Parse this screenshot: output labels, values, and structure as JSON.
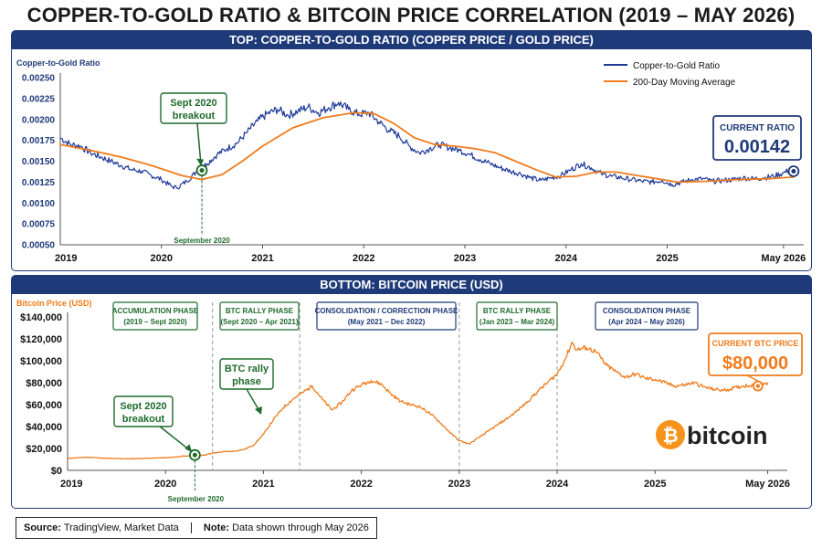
{
  "title": "COPPER-TO-GOLD RATIO & BITCOIN PRICE CORRELATION (2019 – MAY 2026)",
  "footer": {
    "source_label": "Source:",
    "source_value": "TradingView, Market Data",
    "note_label": "Note:",
    "note_value": "Data shown through May 2026"
  },
  "colors": {
    "navy": "#1f3a78",
    "ratio_line": "#1f3a9a",
    "ma_line": "#f07b1c",
    "btc_line": "#f07b1c",
    "green": "#1e6b2c",
    "btc_logo": "#f7931a"
  },
  "chart_data": [
    {
      "type": "line",
      "panel_title": "TOP: COPPER-TO-GOLD RATIO (COPPER PRICE / GOLD PRICE)",
      "ylabel": "Copper-to-Gold Ratio",
      "ylim": [
        0.0005,
        0.0025
      ],
      "yticks": [
        "0.00250",
        "0.00225",
        "0.00200",
        "0.00175",
        "0.00150",
        "0.00125",
        "0.00100",
        "0.00075",
        "0.00050"
      ],
      "xlim": [
        2019.0,
        2026.35
      ],
      "xticks": [
        {
          "x": 2019,
          "label": "2019"
        },
        {
          "x": 2020,
          "label": "2020"
        },
        {
          "x": 2021,
          "label": "2021"
        },
        {
          "x": 2022,
          "label": "2022"
        },
        {
          "x": 2023,
          "label": "2023"
        },
        {
          "x": 2024,
          "label": "2024"
        },
        {
          "x": 2025,
          "label": "2025"
        },
        {
          "x": 2026.15,
          "label": "May 2026"
        }
      ],
      "legend": {
        "position": "top-right",
        "entries": [
          "Copper-to-Gold Ratio",
          "200-Day Moving Average"
        ]
      },
      "series": [
        {
          "name": "Copper-to-Gold Ratio",
          "x": [
            2019.0,
            2019.1,
            2019.2,
            2019.3,
            2019.4,
            2019.5,
            2019.6,
            2019.7,
            2019.8,
            2019.9,
            2020.0,
            2020.1,
            2020.15,
            2020.25,
            2020.35,
            2020.45,
            2020.55,
            2020.65,
            2020.75,
            2020.85,
            2020.95,
            2021.05,
            2021.15,
            2021.25,
            2021.35,
            2021.45,
            2021.55,
            2021.65,
            2021.75,
            2021.85,
            2021.95,
            2022.05,
            2022.15,
            2022.25,
            2022.35,
            2022.45,
            2022.55,
            2022.65,
            2022.75,
            2022.85,
            2022.95,
            2023.05,
            2023.15,
            2023.25,
            2023.35,
            2023.45,
            2023.55,
            2023.65,
            2023.75,
            2023.85,
            2023.95,
            2024.05,
            2024.15,
            2024.25,
            2024.35,
            2024.45,
            2024.55,
            2024.65,
            2024.75,
            2024.85,
            2024.95,
            2025.05,
            2025.15,
            2025.25,
            2025.35,
            2025.45,
            2025.55,
            2025.65,
            2025.75,
            2025.85,
            2025.95,
            2026.05,
            2026.15,
            2026.25
          ],
          "values": [
            0.00178,
            0.0017,
            0.00168,
            0.0016,
            0.00155,
            0.0015,
            0.00145,
            0.0014,
            0.00138,
            0.00133,
            0.00128,
            0.0012,
            0.00118,
            0.00126,
            0.00138,
            0.00147,
            0.00158,
            0.00165,
            0.00172,
            0.00185,
            0.00198,
            0.00207,
            0.00212,
            0.00205,
            0.0021,
            0.00215,
            0.00208,
            0.00214,
            0.0022,
            0.00212,
            0.00206,
            0.00208,
            0.00197,
            0.00187,
            0.0018,
            0.00168,
            0.0016,
            0.00165,
            0.0017,
            0.00166,
            0.00163,
            0.00158,
            0.00152,
            0.00147,
            0.00142,
            0.00138,
            0.00135,
            0.0013,
            0.00127,
            0.0013,
            0.00133,
            0.0014,
            0.00147,
            0.00142,
            0.00135,
            0.00132,
            0.0013,
            0.00128,
            0.00126,
            0.00125,
            0.00127,
            0.00122,
            0.00125,
            0.00128,
            0.00129,
            0.00126,
            0.00127,
            0.00128,
            0.0013,
            0.00129,
            0.0013,
            0.00132,
            0.00136,
            0.00142
          ]
        },
        {
          "name": "200-Day Moving Average",
          "x": [
            2019.0,
            2019.3,
            2019.6,
            2019.9,
            2020.2,
            2020.4,
            2020.6,
            2020.8,
            2021.0,
            2021.3,
            2021.6,
            2021.9,
            2022.1,
            2022.3,
            2022.5,
            2022.7,
            2022.9,
            2023.1,
            2023.3,
            2023.5,
            2023.7,
            2023.9,
            2024.1,
            2024.3,
            2024.5,
            2024.7,
            2024.9,
            2025.1,
            2025.4,
            2025.7,
            2026.0,
            2026.25
          ],
          "values": [
            0.0017,
            0.00163,
            0.00155,
            0.00145,
            0.00133,
            0.00128,
            0.00134,
            0.0015,
            0.00168,
            0.0019,
            0.00202,
            0.00208,
            0.00207,
            0.00195,
            0.00178,
            0.0017,
            0.00168,
            0.00165,
            0.0016,
            0.0015,
            0.0014,
            0.00131,
            0.00132,
            0.00137,
            0.00137,
            0.00133,
            0.00129,
            0.00125,
            0.00126,
            0.00128,
            0.00129,
            0.00131
          ]
        }
      ],
      "annotations": {
        "breakout_label": [
          "Sept 2020",
          "breakout"
        ],
        "breakout_point": {
          "x": 2020.4,
          "y": 0.00139
        },
        "breakout_date": "September 2020",
        "current_label": "CURRENT RATIO",
        "current_value": "0.00142",
        "current_point": {
          "x": 2026.25,
          "y": 0.00138
        }
      }
    },
    {
      "type": "line",
      "panel_title": "BOTTOM: BITCOIN PRICE (USD)",
      "ylabel": "Bitcoin Price (USD)",
      "ylim": [
        0,
        140000
      ],
      "yticks": [
        "$140,000",
        "$120,000",
        "$100,000",
        "$80,000",
        "$60,000",
        "$40,000",
        "$20,000",
        "$0"
      ],
      "xlim": [
        2019.0,
        2026.35
      ],
      "xticks": [
        {
          "x": 2019,
          "label": "2019"
        },
        {
          "x": 2020,
          "label": "2020"
        },
        {
          "x": 2021,
          "label": "2021"
        },
        {
          "x": 2022,
          "label": "2022"
        },
        {
          "x": 2023,
          "label": "2023"
        },
        {
          "x": 2024,
          "label": "2024"
        },
        {
          "x": 2025,
          "label": "2025"
        },
        {
          "x": 2026.15,
          "label": "May 2026"
        }
      ],
      "series": [
        {
          "name": "Bitcoin Price (USD)",
          "x": [
            2019.0,
            2019.2,
            2019.4,
            2019.6,
            2019.8,
            2020.0,
            2020.2,
            2020.4,
            2020.5,
            2020.6,
            2020.7,
            2020.8,
            2020.9,
            2021.0,
            2021.1,
            2021.2,
            2021.3,
            2021.4,
            2021.5,
            2021.6,
            2021.7,
            2021.8,
            2021.9,
            2022.0,
            2022.1,
            2022.2,
            2022.3,
            2022.4,
            2022.5,
            2022.6,
            2022.7,
            2022.8,
            2022.9,
            2023.0,
            2023.1,
            2023.2,
            2023.3,
            2023.4,
            2023.5,
            2023.6,
            2023.7,
            2023.8,
            2023.9,
            2024.0,
            2024.1,
            2024.15,
            2024.2,
            2024.3,
            2024.4,
            2024.5,
            2024.6,
            2024.7,
            2024.8,
            2024.9,
            2025.0,
            2025.1,
            2025.2,
            2025.3,
            2025.4,
            2025.5,
            2025.6,
            2025.7,
            2025.8,
            2025.9,
            2026.0,
            2026.1,
            2026.15
          ],
          "values": [
            11000,
            12000,
            11000,
            10500,
            11000,
            11500,
            13000,
            14000,
            16000,
            17000,
            17500,
            19000,
            23000,
            33000,
            46000,
            57000,
            65000,
            71000,
            77000,
            65000,
            55000,
            62000,
            73000,
            78000,
            82000,
            79000,
            70000,
            63000,
            60000,
            58000,
            52000,
            44000,
            35000,
            27000,
            24000,
            30000,
            36000,
            42000,
            48000,
            55000,
            63000,
            72000,
            80000,
            88000,
            105000,
            117000,
            110000,
            112000,
            108000,
            96000,
            90000,
            85000,
            88000,
            84000,
            83000,
            80000,
            77000,
            78000,
            80000,
            76000,
            74000,
            73000,
            75000,
            77000,
            78000,
            79000,
            80000
          ]
        }
      ],
      "phases": [
        {
          "label": "ACCUMULATION PHASE",
          "range": "(2019 – Sept 2020)",
          "style": "green"
        },
        {
          "label": "BTC RALLY PHASE",
          "range": "(Sept 2020 – Apr 2021)",
          "style": "green"
        },
        {
          "label": "CONSOLIDATION / CORRECTION PHASE",
          "range": "(May 2021 – Dec 2022)",
          "style": "navy"
        },
        {
          "label": "BTC RALLY PHASE",
          "range": "(Jan 2023 – Mar 2024)",
          "style": "green"
        },
        {
          "label": "CONSOLIDATION PHASE",
          "range": "(Apr 2024 – May 2026)",
          "style": "navy"
        }
      ],
      "phase_boundaries": [
        2020.48,
        2021.37,
        2023.0,
        2024.0
      ],
      "annotations": {
        "breakout_label": [
          "Sept 2020",
          "breakout"
        ],
        "breakout_point": {
          "x": 2020.3,
          "y": 14000
        },
        "breakout_date": "September 2020",
        "rally_label": [
          "BTC rally",
          "phase"
        ],
        "current_label": "CURRENT BTC PRICE",
        "current_value": "$80,000",
        "current_point": {
          "x": 2026.05,
          "y": 77000
        },
        "logo_text": "bitcoin",
        "logo_symbol": "₿"
      }
    }
  ]
}
